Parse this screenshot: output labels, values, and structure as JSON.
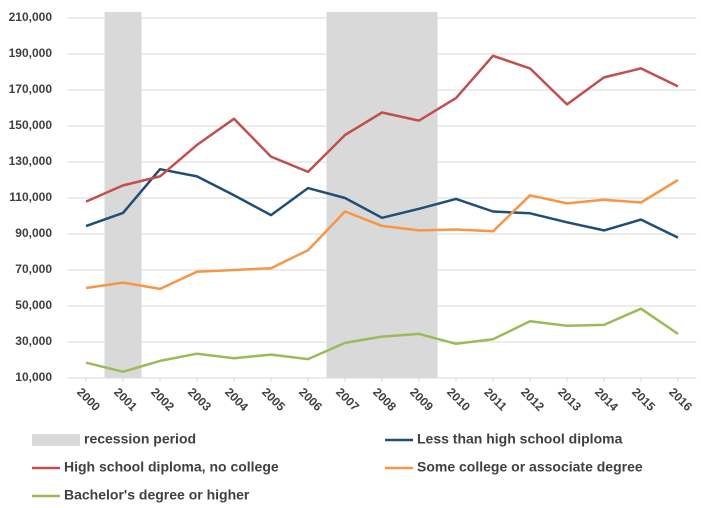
{
  "chart_data": {
    "type": "line",
    "x": [
      2000,
      2001,
      2002,
      2003,
      2004,
      2005,
      2006,
      2007,
      2008,
      2009,
      2010,
      2011,
      2012,
      2013,
      2014,
      2015,
      2016
    ],
    "xlim": [
      1999.5,
      2016.5
    ],
    "xticks": [
      2000,
      2001,
      2002,
      2003,
      2004,
      2005,
      2006,
      2007,
      2008,
      2009,
      2010,
      2011,
      2012,
      2013,
      2014,
      2015,
      2016
    ],
    "ylim": [
      10000,
      210000
    ],
    "yticks": [
      {
        "value": 10000,
        "label": "10,000"
      },
      {
        "value": 30000,
        "label": "30,000"
      },
      {
        "value": 50000,
        "label": "50,000"
      },
      {
        "value": 70000,
        "label": "70,000"
      },
      {
        "value": 90000,
        "label": "90,000"
      },
      {
        "value": 110000,
        "label": "110,000"
      },
      {
        "value": 130000,
        "label": "130,000"
      },
      {
        "value": 150000,
        "label": "150,000"
      },
      {
        "value": 170000,
        "label": "170,000"
      },
      {
        "value": 190000,
        "label": "190,000"
      },
      {
        "value": 210000,
        "label": "210,000"
      }
    ],
    "grid": true,
    "shaded_spans": {
      "name": "recession period",
      "color": "#d9d9d9",
      "spans": [
        [
          2000.5,
          2001.5
        ],
        [
          2006.5,
          2009.5
        ]
      ]
    },
    "series": [
      {
        "name": "Less than high school diploma",
        "color": "#1f4e79",
        "values": [
          94400,
          101700,
          126000,
          122000,
          111500,
          100500,
          115500,
          110000,
          99000,
          104000,
          109500,
          102500,
          101500,
          96500,
          92000,
          98000,
          88000
        ]
      },
      {
        "name": "High school diploma, no college",
        "color": "#c0504d",
        "values": [
          108000,
          117000,
          122000,
          139500,
          154000,
          133000,
          124500,
          145000,
          157500,
          153000,
          165500,
          189000,
          182000,
          162000,
          177000,
          182000,
          172000
        ]
      },
      {
        "name": "Some college or associate degree",
        "color": "#f79646",
        "values": [
          60000,
          63000,
          59500,
          69000,
          70000,
          71000,
          81000,
          102500,
          94500,
          92000,
          92500,
          91500,
          111500,
          107000,
          109000,
          107500,
          120000
        ]
      },
      {
        "name": "Bachelor's degree or higher",
        "color": "#9bbb59",
        "values": [
          18500,
          13500,
          19500,
          23500,
          21000,
          23000,
          20500,
          29500,
          33000,
          34500,
          29000,
          31500,
          41500,
          39000,
          39500,
          48500,
          34500
        ]
      }
    ]
  }
}
